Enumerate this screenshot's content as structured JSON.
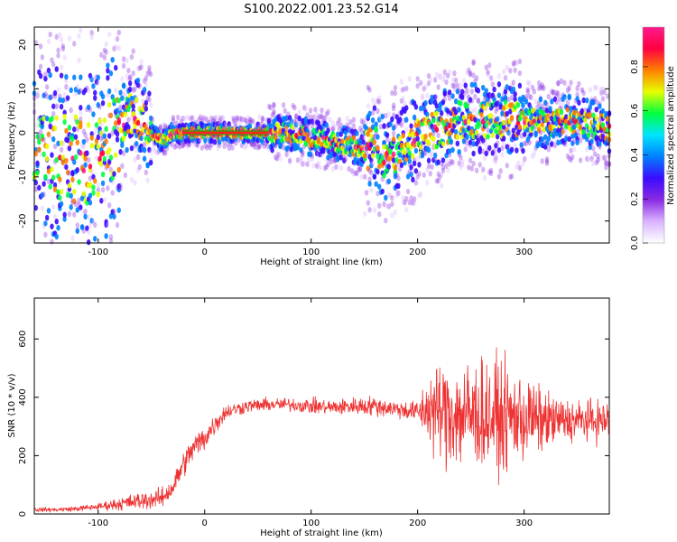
{
  "page_title": "S100.2022.001.23.52.G14",
  "chart_data": [
    {
      "type": "heatmap",
      "title": "S100.2022.001.23.52.G14",
      "xlabel": "Height of straight line (km)",
      "ylabel": "Frequency (Hz)",
      "xlim": [
        -160,
        380
      ],
      "ylim": [
        -25,
        24
      ],
      "xticks": [
        -100,
        0,
        100,
        200,
        300
      ],
      "yticks": [
        -20,
        -10,
        0,
        10,
        20
      ],
      "colorbar": {
        "label": "Normalized spectral amplitude",
        "range": [
          0,
          0.98
        ],
        "ticks": [
          0.0,
          0.2,
          0.4,
          0.6,
          0.8
        ],
        "tick_labels": [
          "0.0",
          "0.2",
          "0.4",
          "0.6",
          "0.8"
        ],
        "colormap": [
          "#ffffff",
          "#d9b3ff",
          "#8a2be2",
          "#3b0bff",
          "#0080ff",
          "#00e5ff",
          "#00ff40",
          "#e6ff00",
          "#ff8000",
          "#ff0040",
          "#ff1a8c"
        ]
      },
      "ridge": {
        "x": [
          -160,
          -140,
          -120,
          -100,
          -90,
          -80,
          -70,
          -60,
          -50,
          -40,
          -30,
          -20,
          0,
          20,
          40,
          60,
          80,
          100,
          120,
          140,
          150,
          160,
          170,
          180,
          200,
          220,
          240,
          260,
          280,
          300,
          320,
          340,
          360,
          380
        ],
        "y": [
          -4,
          -5,
          -6,
          -6,
          -3,
          1,
          4,
          3,
          0,
          -2,
          0,
          0,
          0,
          0,
          0,
          0,
          0,
          -1,
          -2,
          -3,
          -4,
          -3,
          -6,
          -4,
          -1,
          1,
          3,
          3,
          3,
          3,
          2,
          3,
          2,
          1
        ]
      },
      "grid": false
    },
    {
      "type": "line",
      "xlabel": "Height of straight line (km)",
      "ylabel": "SNR (10 * v/v)",
      "xlim": [
        -160,
        380
      ],
      "ylim": [
        0,
        740
      ],
      "xticks": [
        -100,
        0,
        100,
        200,
        300
      ],
      "yticks": [
        0,
        200,
        400,
        600
      ],
      "series_color": "#ee3333",
      "envelope": {
        "x": [
          -160,
          -140,
          -120,
          -100,
          -80,
          -60,
          -40,
          -30,
          -20,
          -10,
          0,
          10,
          20,
          40,
          60,
          80,
          100,
          120,
          140,
          160,
          180,
          200,
          210,
          220,
          240,
          260,
          280,
          300,
          320,
          340,
          360,
          380
        ],
        "mean": [
          15,
          15,
          18,
          25,
          35,
          45,
          55,
          90,
          170,
          230,
          260,
          310,
          350,
          370,
          375,
          375,
          370,
          365,
          370,
          370,
          360,
          350,
          360,
          350,
          340,
          340,
          330,
          330,
          320,
          320,
          320,
          320
        ],
        "spread": [
          10,
          10,
          12,
          15,
          30,
          40,
          45,
          50,
          60,
          60,
          60,
          50,
          35,
          30,
          30,
          30,
          35,
          35,
          40,
          45,
          40,
          50,
          160,
          230,
          260,
          250,
          240,
          200,
          130,
          100,
          90,
          90
        ]
      },
      "grid": false
    }
  ]
}
